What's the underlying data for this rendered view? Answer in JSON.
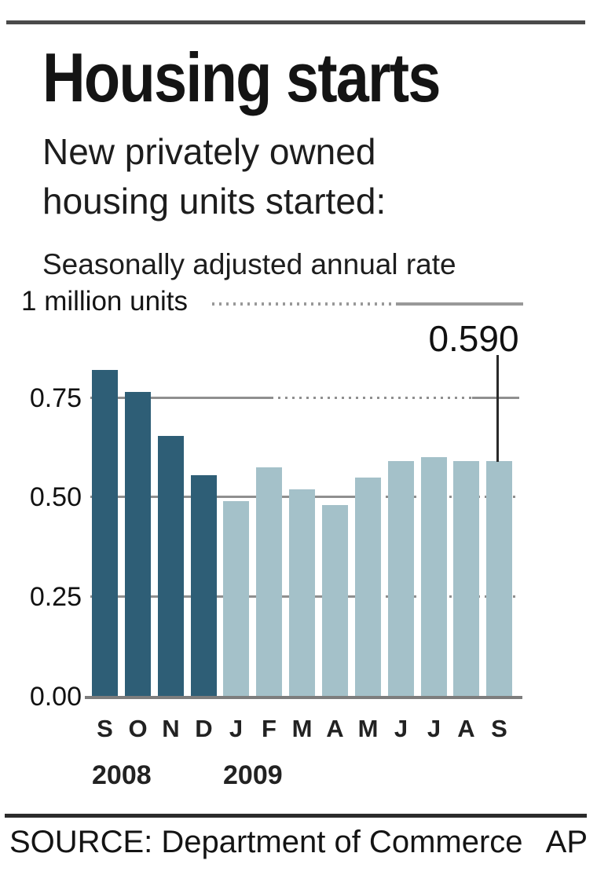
{
  "header": {
    "title": "Housing starts",
    "subtitle": "New privately owned\nhousing units started:",
    "note": "Seasonally adjusted annual rate",
    "unit_label": "1 million units"
  },
  "chart_data": {
    "type": "bar",
    "title": "Housing starts",
    "ylabel": "1 million units",
    "subtitle": "New privately owned housing units started, seasonally adjusted annual rate",
    "categories": [
      "S",
      "O",
      "N",
      "D",
      "J",
      "F",
      "M",
      "A",
      "M",
      "J",
      "J",
      "A",
      "S"
    ],
    "values": [
      0.82,
      0.765,
      0.655,
      0.555,
      0.49,
      0.575,
      0.52,
      0.48,
      0.55,
      0.59,
      0.6,
      0.59,
      0.59
    ],
    "bar_groups": [
      {
        "year": "2008",
        "color": "#2e5e76",
        "from": 0,
        "to": 3
      },
      {
        "year": "2009",
        "color": "#a4c1c9",
        "from": 4,
        "to": 12
      }
    ],
    "year_labels": [
      {
        "text": "2008",
        "bar_index": 0
      },
      {
        "text": "2009",
        "bar_index": 4
      }
    ],
    "yticks": [
      "0.75",
      "0.50",
      "0.25",
      "0.00"
    ],
    "ytick_values": [
      0.75,
      0.5,
      0.25,
      0.0
    ],
    "ylim": [
      0,
      1
    ],
    "grid": true,
    "legend_position": "none",
    "annotation": {
      "label": "0.590",
      "value": 0.59,
      "bar_index": 12
    },
    "reference_line": {
      "label": "1 million units",
      "value": 1.0
    },
    "colors": {
      "bars_2008": "#2e5e76",
      "bars_2009": "#a4c1c9",
      "gridline": "#8f8f8f",
      "text": "#1a1a1a"
    }
  },
  "footer": {
    "source": "SOURCE: Department of Commerce",
    "credit": "AP"
  }
}
